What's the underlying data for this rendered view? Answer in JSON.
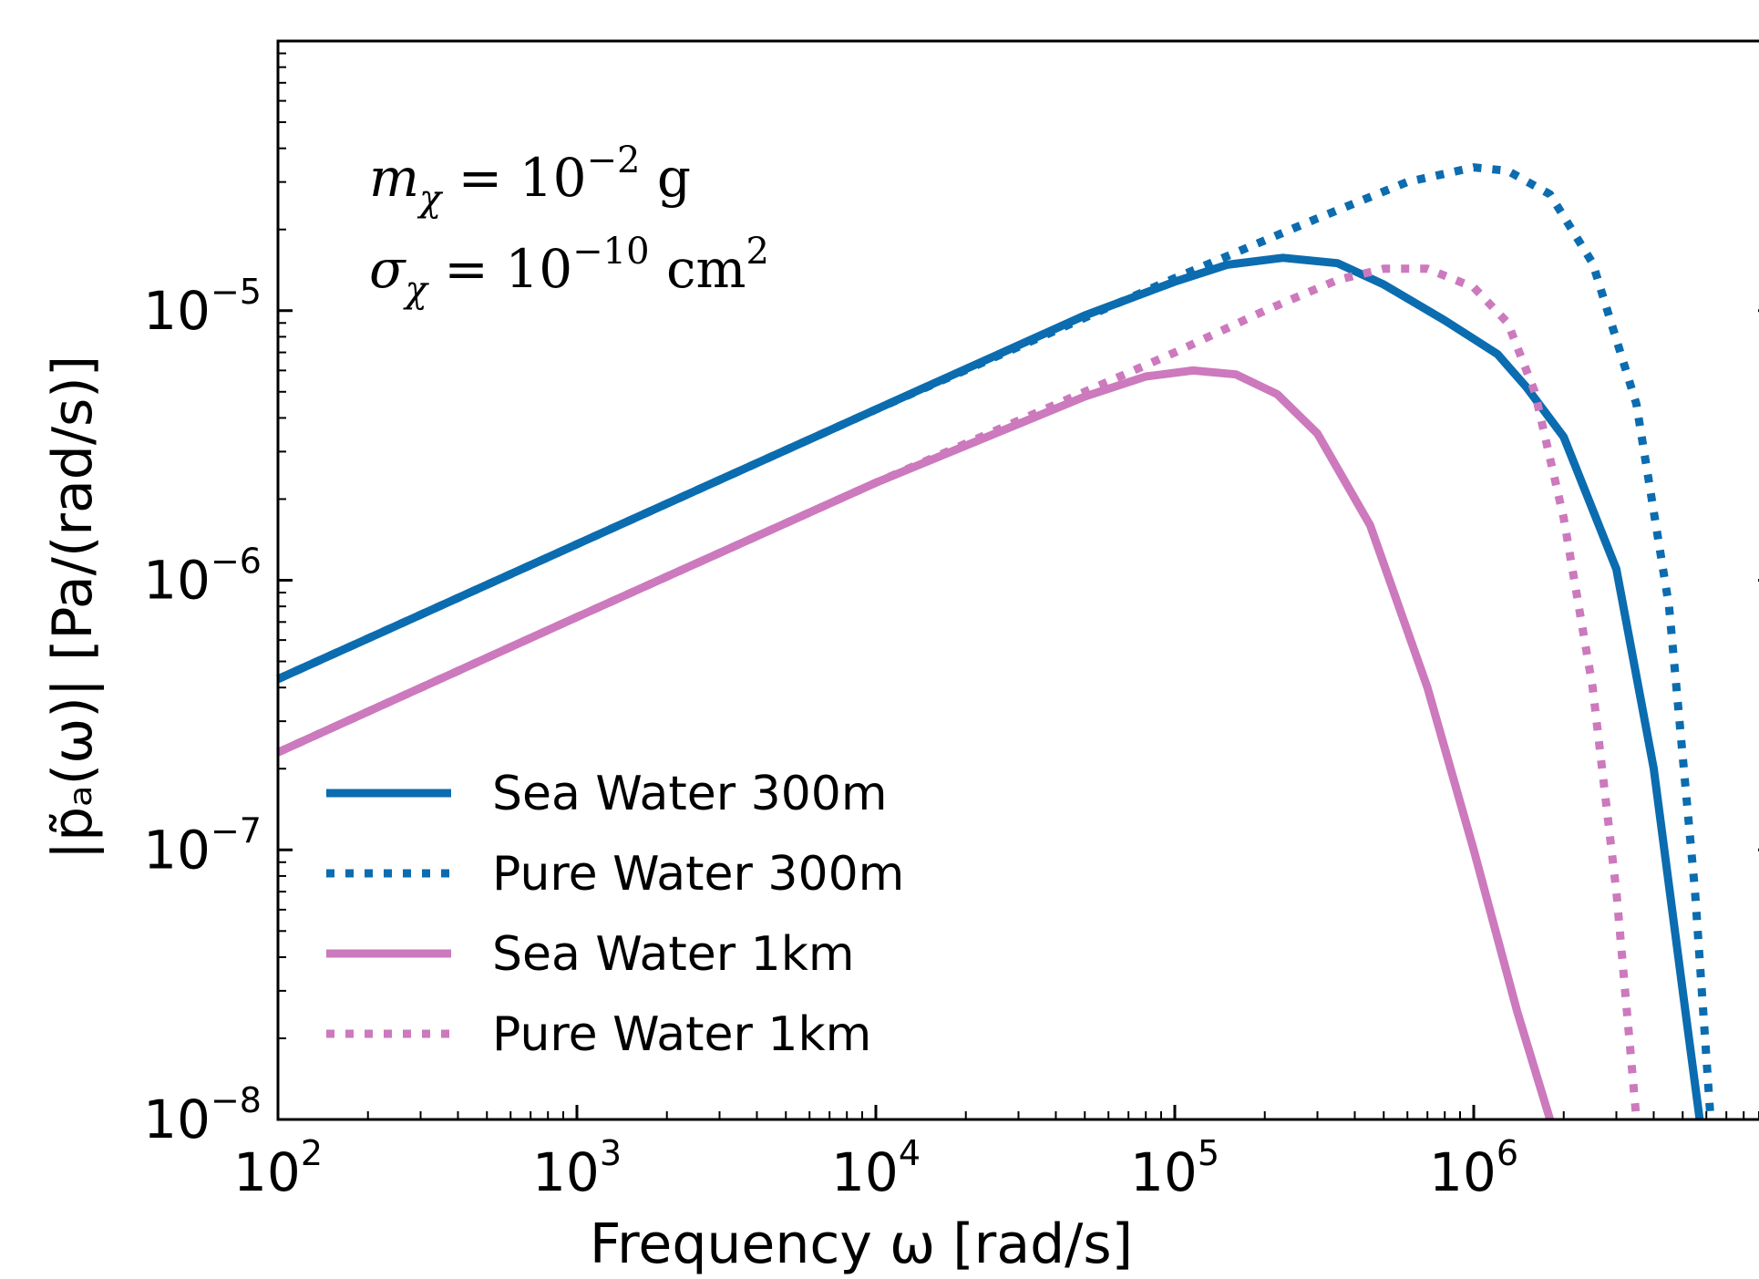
{
  "chart_data": {
    "type": "line",
    "xscale": "log",
    "yscale": "log",
    "xlabel": "Frequency ω [rad/s]",
    "ylabel": "|p̃ₐ(ω)| [Pa/(rad/s)]",
    "xlim": [
      100,
      10000000
    ],
    "ylim": [
      1e-08,
      0.0001
    ],
    "x_ticks": [
      {
        "value": 100,
        "base": "10",
        "exp": "2"
      },
      {
        "value": 1000,
        "base": "10",
        "exp": "3"
      },
      {
        "value": 10000,
        "base": "10",
        "exp": "4"
      },
      {
        "value": 100000,
        "base": "10",
        "exp": "5"
      },
      {
        "value": 1000000,
        "base": "10",
        "exp": "6"
      }
    ],
    "y_ticks": [
      {
        "value": 1e-08,
        "base": "10",
        "exp": "−8"
      },
      {
        "value": 1e-07,
        "base": "10",
        "exp": "−7"
      },
      {
        "value": 1e-06,
        "base": "10",
        "exp": "−6"
      },
      {
        "value": 1e-05,
        "base": "10",
        "exp": "−5"
      }
    ],
    "annotations": [
      {
        "text": "m",
        "sub": "χ",
        "rest": " = 10",
        "sup": "−2",
        "tail": " g"
      },
      {
        "text": "σ",
        "sub": "χ",
        "rest": " = 10",
        "sup": "−10",
        "tail": " cm",
        "sup2": "2"
      }
    ],
    "legend_position": "lower-left",
    "grid": false,
    "series": [
      {
        "name": "Sea Water 300m",
        "color": "#0b6cb0",
        "style": "solid",
        "points": [
          [
            100,
            4.3e-07
          ],
          [
            1000,
            1.36e-06
          ],
          [
            10000,
            4.3e-06
          ],
          [
            50000,
            9.6e-06
          ],
          [
            100000,
            1.28e-05
          ],
          [
            150000,
            1.48e-05
          ],
          [
            230000,
            1.57e-05
          ],
          [
            350000,
            1.5e-05
          ],
          [
            500000,
            1.25e-05
          ],
          [
            800000,
            9.2e-06
          ],
          [
            1200000,
            6.9e-06
          ],
          [
            1500000,
            5.2e-06
          ],
          [
            2000000,
            3.4e-06
          ],
          [
            3000000,
            1.1e-06
          ],
          [
            4000000,
            2e-07
          ],
          [
            5000000,
            3e-08
          ],
          [
            5700000,
            1e-08
          ]
        ]
      },
      {
        "name": "Pure Water 300m",
        "color": "#0b6cb0",
        "style": "dotted",
        "points": [
          [
            100,
            4.3e-07
          ],
          [
            1000,
            1.36e-06
          ],
          [
            10000,
            4.3e-06
          ],
          [
            100000,
            1.32e-05
          ],
          [
            300000,
            2.2e-05
          ],
          [
            600000,
            3e-05
          ],
          [
            1000000,
            3.4e-05
          ],
          [
            1300000,
            3.3e-05
          ],
          [
            1800000,
            2.7e-05
          ],
          [
            2500000,
            1.5e-05
          ],
          [
            3500000,
            4.5e-06
          ],
          [
            4500000,
            8e-07
          ],
          [
            5500000,
            7e-08
          ],
          [
            6200000,
            1e-08
          ]
        ]
      },
      {
        "name": "Sea Water 1km",
        "color": "#cc79bd",
        "style": "solid",
        "points": [
          [
            100,
            2.3e-07
          ],
          [
            1000,
            7.3e-07
          ],
          [
            10000,
            2.3e-06
          ],
          [
            50000,
            4.8e-06
          ],
          [
            80000,
            5.7e-06
          ],
          [
            115000,
            6e-06
          ],
          [
            160000,
            5.8e-06
          ],
          [
            220000,
            4.9e-06
          ],
          [
            300000,
            3.5e-06
          ],
          [
            450000,
            1.6e-06
          ],
          [
            700000,
            4e-07
          ],
          [
            1000000,
            1e-07
          ],
          [
            1400000,
            2.5e-08
          ],
          [
            1800000,
            1e-08
          ]
        ]
      },
      {
        "name": "Pure Water 1km",
        "color": "#cc79bd",
        "style": "dotted",
        "points": [
          [
            100,
            2.3e-07
          ],
          [
            1000,
            7.3e-07
          ],
          [
            10000,
            2.3e-06
          ],
          [
            50000,
            5e-06
          ],
          [
            100000,
            7e-06
          ],
          [
            200000,
            1e-05
          ],
          [
            350000,
            1.3e-05
          ],
          [
            500000,
            1.43e-05
          ],
          [
            700000,
            1.43e-05
          ],
          [
            1000000,
            1.22e-05
          ],
          [
            1300000,
            9e-06
          ],
          [
            1600000,
            5e-06
          ],
          [
            2000000,
            1.7e-06
          ],
          [
            2500000,
            4e-07
          ],
          [
            3000000,
            7e-08
          ],
          [
            3500000,
            1e-08
          ]
        ]
      }
    ]
  }
}
